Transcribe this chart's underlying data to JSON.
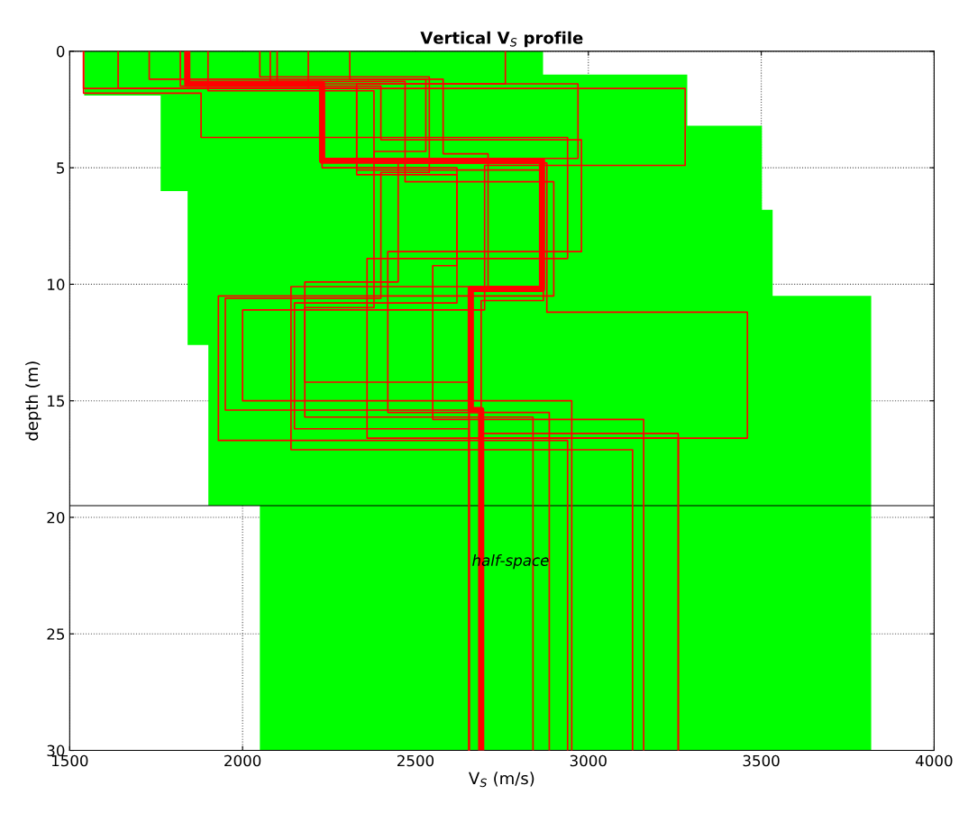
{
  "chart_data": {
    "type": "line",
    "title": "Vertical V$_{S}$ profile",
    "xlabel": "V$_{S}$ (m/s)",
    "ylabel": "depth (m)",
    "xlim": [
      1500,
      4000
    ],
    "xticks": [
      1500,
      2000,
      2500,
      3000,
      3500,
      4000
    ],
    "ylim": [
      30,
      0
    ],
    "yticks": [
      0,
      5,
      10,
      15,
      20,
      25,
      30
    ],
    "grid": true,
    "line_style": "solid",
    "marker": "none",
    "annotations": [
      "half-space"
    ],
    "ref_lines": [
      {
        "axis": "y",
        "value": 19.5,
        "color": "#000000"
      }
    ],
    "series": [
      {
        "type": "area",
        "color": "#00ff00",
        "x": [
          1542,
          1542,
          1763,
          1763,
          1841,
          1841,
          1901,
          1901,
          2050,
          2050,
          3818,
          3818,
          3533,
          3533,
          3502,
          3502,
          3286,
          3286,
          2869,
          2869
        ],
        "values": [
          0,
          1.9,
          1.9,
          6.0,
          6.0,
          12.6,
          12.6,
          19.5,
          19.5,
          30,
          30,
          10.5,
          10.5,
          6.8,
          6.8,
          3.2,
          3.2,
          1,
          1,
          0
        ]
      },
      {
        "color": "#ff0000",
        "x": [
          1540,
          1540,
          2230,
          2230,
          2620,
          2620,
          2150,
          2150,
          2655,
          2655
        ],
        "values": [
          0,
          1.6,
          1.6,
          5.0,
          5.0,
          10.8,
          10.8,
          16.2,
          16.2,
          30
        ]
      },
      {
        "color": "#ff0000",
        "x": [
          1730,
          1730,
          2530,
          2530,
          2380,
          2380,
          2180,
          2180,
          2840,
          2840
        ],
        "values": [
          0,
          1.2,
          1.2,
          4.3,
          4.3,
          11.0,
          11.0,
          15.7,
          15.7,
          30
        ]
      },
      {
        "color": "#ff0000",
        "x": [
          1820,
          1820,
          2400,
          2400,
          2980,
          2980,
          2420,
          2420,
          2887,
          2887
        ],
        "values": [
          0,
          1.5,
          1.5,
          3.8,
          3.8,
          8.6,
          8.6,
          15.5,
          15.5,
          30
        ]
      },
      {
        "color": "#ff0000",
        "x": [
          2080,
          2080,
          2470,
          2470,
          2900,
          2900,
          1930,
          1930,
          2940,
          2940
        ],
        "values": [
          0,
          1.3,
          1.3,
          5.6,
          5.6,
          10.5,
          10.5,
          16.7,
          16.7,
          30
        ]
      },
      {
        "color": "#ff0000",
        "x": [
          2190,
          2190,
          3280,
          3280,
          2700,
          2700,
          2000,
          2000,
          2952,
          2952
        ],
        "values": [
          0,
          1.6,
          1.6,
          4.9,
          4.9,
          11.1,
          11.1,
          15.0,
          15.0,
          30
        ]
      },
      {
        "color": "#ff0000",
        "x": [
          2310,
          2310,
          2580,
          2580,
          2710,
          2710,
          2140,
          2140,
          3128,
          3128
        ],
        "values": [
          0,
          1.2,
          1.2,
          4.4,
          4.4,
          10.1,
          10.1,
          17.1,
          17.1,
          30
        ]
      },
      {
        "color": "#ff0000",
        "x": [
          2760,
          2760,
          2330,
          2330,
          2620,
          2620,
          2550,
          2550,
          3160,
          3160
        ],
        "values": [
          0,
          1.4,
          1.4,
          5.3,
          5.3,
          9.2,
          9.2,
          15.8,
          15.8,
          30
        ]
      },
      {
        "color": "#ff0000",
        "x": [
          1540,
          1540,
          1880,
          1880,
          2940,
          2940,
          2360,
          2360,
          3260,
          3260
        ],
        "values": [
          0,
          1.8,
          1.8,
          3.7,
          3.7,
          8.9,
          8.9,
          16.6,
          16.6,
          30
        ]
      },
      {
        "color": "#ff0000",
        "x": [
          1640,
          1640,
          2330,
          2330,
          2870,
          2870,
          2690,
          2690,
          3260,
          3260
        ],
        "values": [
          0,
          1.6,
          1.6,
          5.1,
          5.1,
          10.7,
          10.7,
          16.4,
          16.4,
          30
        ]
      },
      {
        "color": "#ff0000",
        "x": [
          2100,
          2100,
          2970,
          2970,
          2450,
          2450,
          2180,
          2180,
          2655,
          2655
        ],
        "values": [
          0,
          1.4,
          1.4,
          4.6,
          4.6,
          9.9,
          9.9,
          14.2,
          14.2,
          30
        ]
      },
      {
        "color": "#ff0000",
        "x": [
          1900,
          1900,
          2380,
          2380,
          2880,
          2880,
          3460,
          3460,
          2655,
          2655
        ],
        "values": [
          0,
          1.7,
          1.7,
          4.8,
          4.8,
          11.2,
          11.2,
          16.6,
          16.6,
          30
        ]
      },
      {
        "color": "#ff0000",
        "x": [
          2050,
          2050,
          2540,
          2540,
          2400,
          2400,
          1950,
          1950,
          2655,
          2655
        ],
        "values": [
          0,
          1.1,
          1.1,
          5.2,
          5.2,
          10.6,
          10.6,
          15.4,
          15.4,
          30
        ]
      },
      {
        "color": "#ff0000",
        "x": [
          1840,
          1840,
          2230,
          2230,
          2866,
          2866,
          2660,
          2660,
          2690,
          2690
        ],
        "values": [
          0,
          1.4,
          1.4,
          4.7,
          4.7,
          10.2,
          10.2,
          15.4,
          15.4,
          30
        ]
      }
    ]
  }
}
